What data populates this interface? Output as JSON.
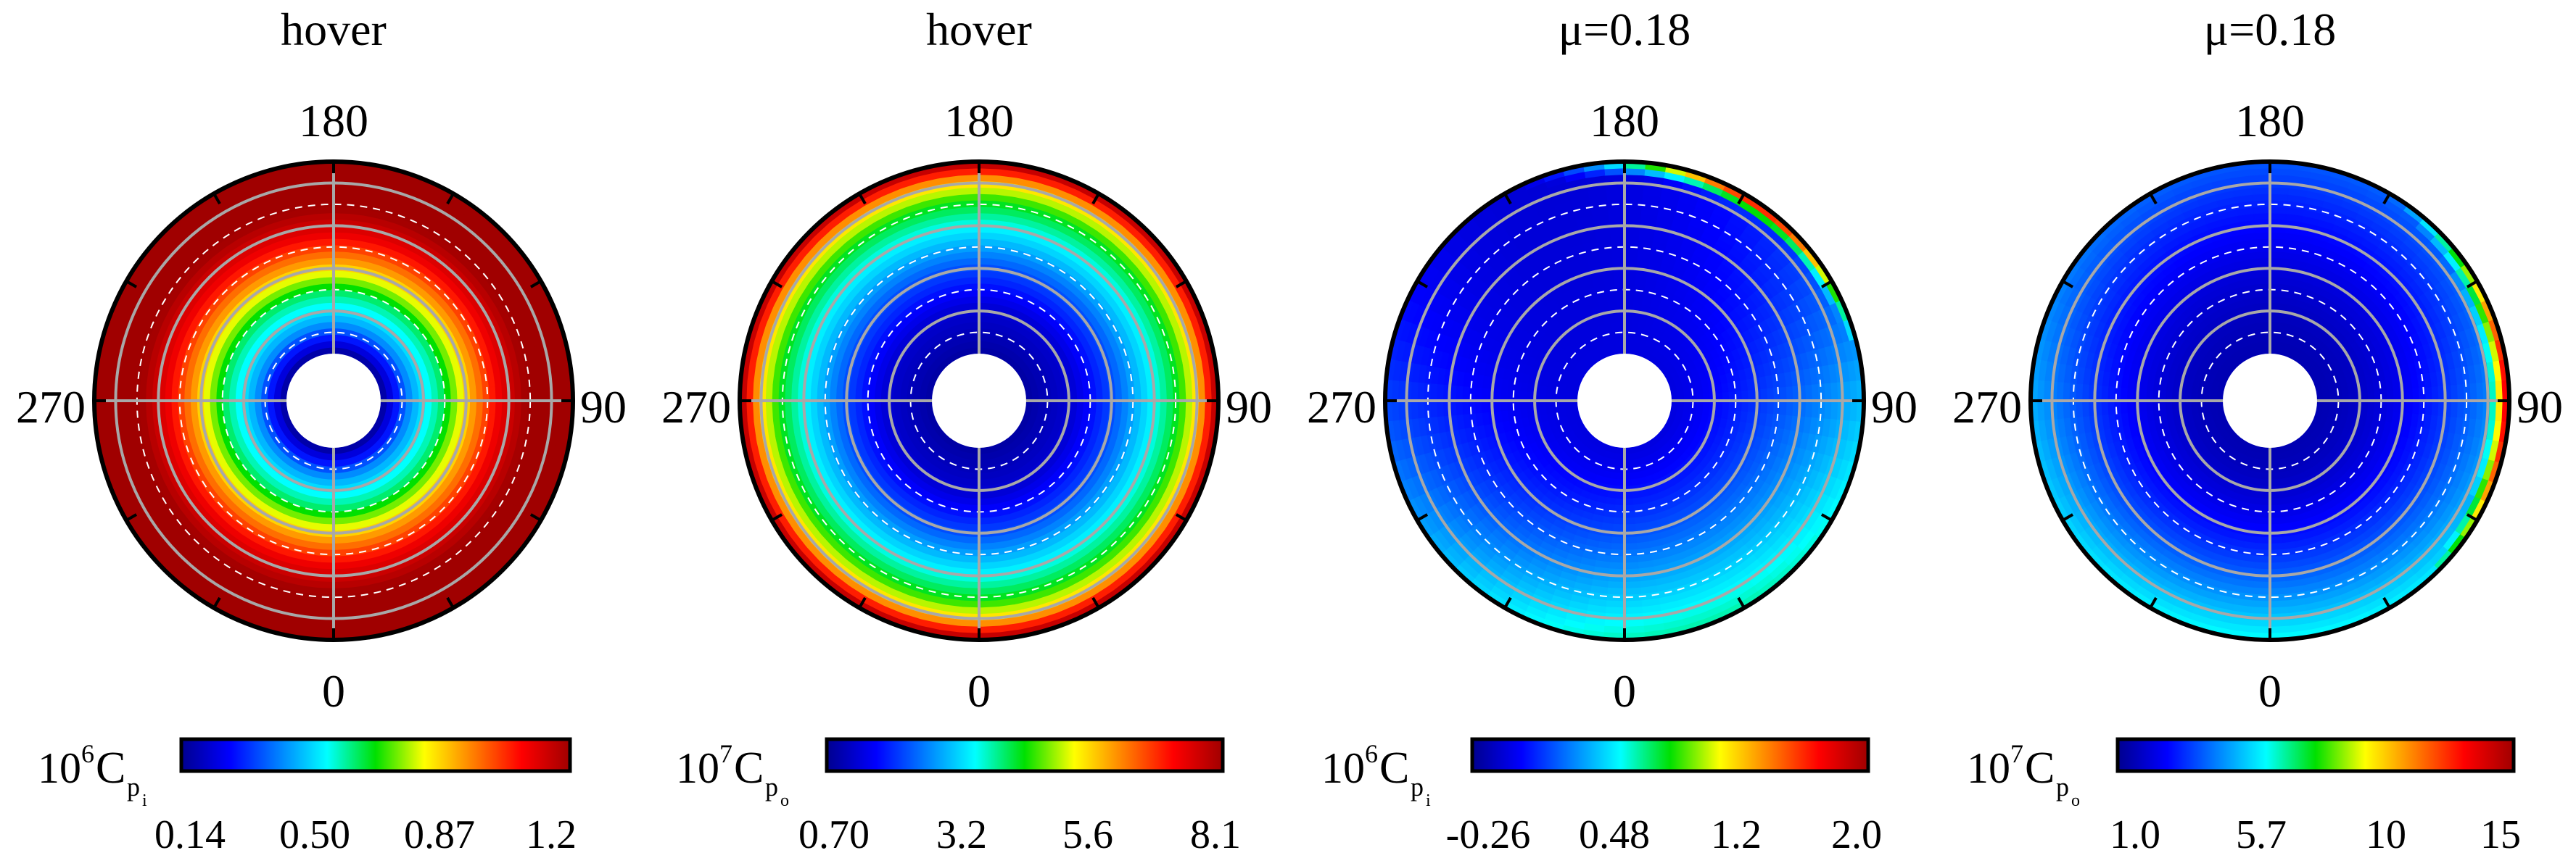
{
  "chart_data": [
    {
      "type": "heatmap",
      "subtype": "polar-disk-contour",
      "title": "hover",
      "azimuth_labels": {
        "top": "180",
        "right": "90",
        "bottom": "0",
        "left": "270"
      },
      "colorbar": {
        "prefix": "10",
        "exponent": "6",
        "symbol": "C",
        "sub": "p",
        "subsub": "i",
        "ticks": [
          "0.14",
          "0.50",
          "0.87",
          "1.2"
        ],
        "range": [
          0.14,
          1.25
        ]
      },
      "grid": {
        "solid_radial_rings": 4,
        "dashed_radial_rings": 4,
        "spokes": [
          0,
          90,
          180,
          270
        ]
      },
      "field": {
        "kind": "radial",
        "stops": [
          [
            0.0,
            0.0
          ],
          [
            0.16,
            0.28
          ],
          [
            0.32,
            0.45
          ],
          [
            0.48,
            0.72
          ],
          [
            0.62,
            0.9
          ],
          [
            0.76,
            1.0
          ],
          [
            1.0,
            1.0
          ]
        ]
      }
    },
    {
      "type": "heatmap",
      "subtype": "polar-disk-contour",
      "title": "hover",
      "azimuth_labels": {
        "top": "180",
        "right": "90",
        "bottom": "0",
        "left": "270"
      },
      "colorbar": {
        "prefix": "10",
        "exponent": "7",
        "symbol": "C",
        "sub": "p",
        "subsub": "o",
        "ticks": [
          "0.70",
          "3.2",
          "5.6",
          "8.1"
        ],
        "range": [
          0.7,
          8.2
        ]
      },
      "grid": {
        "solid_radial_rings": 4,
        "dashed_radial_rings": 4,
        "spokes": [
          0,
          90,
          180,
          270
        ]
      },
      "field": {
        "kind": "radial",
        "stops": [
          [
            0.0,
            0.02
          ],
          [
            0.25,
            0.08
          ],
          [
            0.45,
            0.2
          ],
          [
            0.65,
            0.36
          ],
          [
            0.8,
            0.5
          ],
          [
            0.9,
            0.68
          ],
          [
            0.96,
            0.88
          ],
          [
            1.0,
            1.0
          ]
        ]
      }
    },
    {
      "type": "heatmap",
      "subtype": "polar-disk-contour",
      "title": "μ=0.18",
      "azimuth_labels": {
        "top": "180",
        "right": "90",
        "bottom": "0",
        "left": "270"
      },
      "colorbar": {
        "prefix": "10",
        "exponent": "6",
        "symbol": "C",
        "sub": "p",
        "subsub": "i",
        "ticks": [
          "-0.26",
          "0.48",
          "1.2",
          "2.0"
        ],
        "range": [
          -0.26,
          2.05
        ]
      },
      "grid": {
        "solid_radial_rings": 4,
        "dashed_radial_rings": 4,
        "spokes": [
          0,
          90,
          180,
          270
        ]
      },
      "field": {
        "kind": "forward-flight-inner",
        "base": 0.09,
        "rear_gain": 0.32,
        "rear_exp": 1.3,
        "hot_azimuth": 145,
        "hot_level": 1.0,
        "hot_width": 28
      }
    },
    {
      "type": "heatmap",
      "subtype": "polar-disk-contour",
      "title": "μ=0.18",
      "azimuth_labels": {
        "top": "180",
        "right": "90",
        "bottom": "0",
        "left": "270"
      },
      "colorbar": {
        "prefix": "10",
        "exponent": "7",
        "symbol": "C",
        "sub": "p",
        "subsub": "o",
        "ticks": [
          "1.0",
          "5.7",
          "10",
          "15"
        ],
        "range": [
          0.9,
          15.3
        ]
      },
      "grid": {
        "solid_radial_rings": 4,
        "dashed_radial_rings": 4,
        "spokes": [
          0,
          90,
          180,
          270
        ]
      },
      "field": {
        "kind": "forward-flight-outer",
        "base": 0.04,
        "ring_gain": 0.34,
        "ring_exp": 1.6,
        "hot_azimuth": 90,
        "hot_level": 1.0,
        "hot_width": 35
      }
    }
  ]
}
